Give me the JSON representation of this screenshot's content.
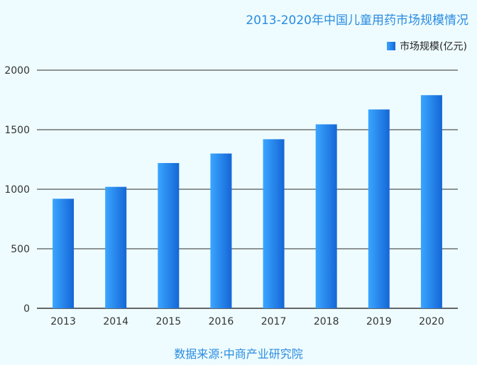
{
  "chart_data": {
    "type": "bar",
    "title": "2013-2020年中国儿童用药市场规模情况",
    "categories": [
      "2013",
      "2014",
      "2015",
      "2016",
      "2017",
      "2018",
      "2019",
      "2020"
    ],
    "series": [
      {
        "name": "市场规模(亿元)",
        "values": [
          920,
          1020,
          1220,
          1300,
          1420,
          1545,
          1670,
          1790
        ]
      }
    ],
    "yticks": [
      "0",
      "500",
      "1000",
      "1500",
      "2000"
    ],
    "ylim": [
      0,
      2000
    ],
    "grid": true,
    "legend_position": "top-right",
    "bar_color_light": "#3aa6ff",
    "bar_color_dark": "#1566d6"
  },
  "source": "数据来源:中商产业研究院"
}
